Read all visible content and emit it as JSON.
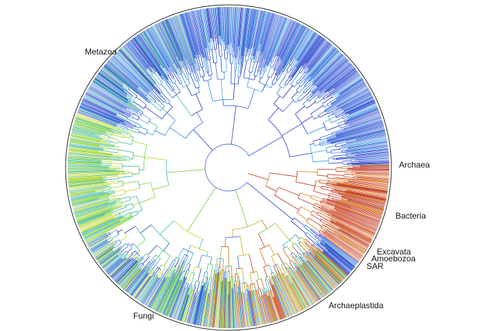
{
  "labels": {
    "metazoa": "Metazoa",
    "archaea": "Archaea",
    "bacteria": "Bacteria",
    "excavata": "Excavata",
    "amoebozoa": "Amoebozoa",
    "sar": "SAR",
    "archaeplastida": "Archaeplastida",
    "fungi": "Fungi"
  },
  "colors": {
    "outline": "#222222",
    "bacteria": [
      "#c8412b",
      "#d24a2a",
      "#b93a2a",
      "#e08a2a"
    ],
    "eukaryote_blue": [
      "#3a4fd8",
      "#4a6ee0",
      "#3d8fe0",
      "#2f3fc8",
      "#5aa8e6"
    ],
    "eukaryote_green": [
      "#7ed04a",
      "#a8dc3c",
      "#4cc48a",
      "#3fb8c0",
      "#c8d83a"
    ],
    "plant_mix": [
      "#7ed04a",
      "#c8b030",
      "#d07a28",
      "#c84a2a",
      "#3fb8c0",
      "#4a6ee0"
    ]
  }
}
